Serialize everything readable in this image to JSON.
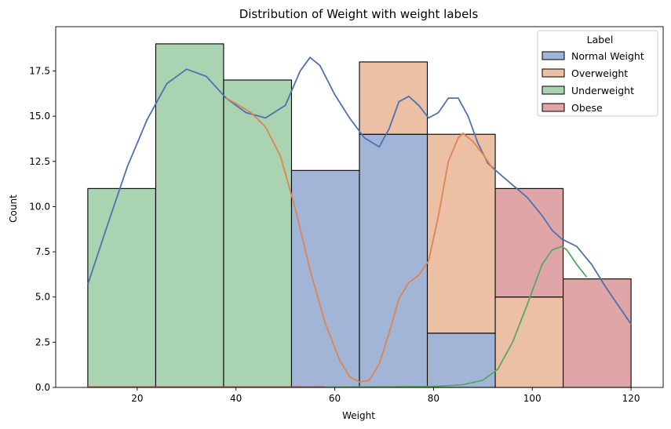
{
  "chart_data": {
    "type": "bar",
    "title": "Distribution of Weight with weight labels",
    "xlabel": "Weight",
    "ylabel": "Count",
    "xlim": [
      3.5,
      126.5
    ],
    "ylim": [
      0,
      19.95
    ],
    "xticks": [
      20,
      40,
      60,
      80,
      100,
      120
    ],
    "yticks": [
      0.0,
      2.5,
      5.0,
      7.5,
      10.0,
      12.5,
      15.0,
      17.5
    ],
    "ytick_labels": [
      "0.0",
      "2.5",
      "5.0",
      "7.5",
      "10.0",
      "12.5",
      "15.0",
      "17.5"
    ],
    "bin_edges": [
      10,
      23.75,
      37.5,
      51.25,
      65,
      78.75,
      92.5,
      106.25,
      120
    ],
    "stacked": true,
    "series": [
      {
        "name": "Normal Weight",
        "color": "#4c72b0",
        "fill": "#a2b5d6",
        "values": [
          0,
          0,
          0,
          12,
          14,
          3,
          0,
          0
        ]
      },
      {
        "name": "Overweight",
        "color": "#dd8452",
        "fill": "#ebc0a5",
        "values": [
          0,
          0,
          0,
          0,
          4,
          11,
          5,
          0
        ]
      },
      {
        "name": "Underweight",
        "color": "#55a868",
        "fill": "#aad3b2",
        "values": [
          11,
          19,
          17,
          0,
          0,
          0,
          0,
          0
        ]
      },
      {
        "name": "Obese",
        "color": "#c44e52",
        "fill": "#e0a5a7",
        "values": [
          0,
          0,
          0,
          0,
          0,
          0,
          6,
          6
        ]
      }
    ],
    "kde": [
      {
        "series": "Normal Weight",
        "color": "#4c72b0",
        "points": [
          [
            10,
            5.7
          ],
          [
            14,
            9.0
          ],
          [
            18,
            12.2
          ],
          [
            22,
            14.8
          ],
          [
            26,
            16.8
          ],
          [
            30,
            17.6
          ],
          [
            34,
            17.2
          ],
          [
            38,
            16.0
          ],
          [
            42,
            15.2
          ],
          [
            46,
            14.9
          ],
          [
            50,
            15.6
          ],
          [
            53,
            17.5
          ],
          [
            55,
            18.25
          ],
          [
            57,
            17.8
          ],
          [
            60,
            16.2
          ],
          [
            63,
            14.9
          ],
          [
            66,
            13.8
          ],
          [
            69,
            13.3
          ],
          [
            71,
            14.3
          ],
          [
            73,
            15.8
          ],
          [
            75,
            16.1
          ],
          [
            77,
            15.6
          ],
          [
            79,
            14.9
          ],
          [
            81,
            15.2
          ],
          [
            83,
            16.0
          ],
          [
            85,
            16.0
          ],
          [
            87,
            15.0
          ],
          [
            89,
            13.5
          ],
          [
            91,
            12.4
          ],
          [
            93,
            11.9
          ],
          [
            96,
            11.2
          ],
          [
            99,
            10.5
          ],
          [
            102,
            9.5
          ],
          [
            104,
            8.7
          ],
          [
            106,
            8.2
          ],
          [
            109,
            7.8
          ],
          [
            112,
            6.8
          ],
          [
            115,
            5.5
          ],
          [
            118,
            4.3
          ],
          [
            120,
            3.5
          ]
        ]
      },
      {
        "series": "Overweight",
        "color": "#dd8452",
        "points": [
          [
            38,
            16.0
          ],
          [
            40,
            15.7
          ],
          [
            43,
            15.2
          ],
          [
            46,
            14.4
          ],
          [
            49,
            12.8
          ],
          [
            52,
            9.9
          ],
          [
            55,
            6.5
          ],
          [
            58,
            3.6
          ],
          [
            61,
            1.5
          ],
          [
            63,
            0.6
          ],
          [
            65,
            0.3
          ],
          [
            67,
            0.4
          ],
          [
            69,
            1.3
          ],
          [
            71,
            3.0
          ],
          [
            73,
            4.9
          ],
          [
            75,
            5.8
          ],
          [
            77,
            6.2
          ],
          [
            79,
            7.0
          ],
          [
            81,
            9.5
          ],
          [
            83,
            12.5
          ],
          [
            85,
            13.8
          ],
          [
            86,
            14.05
          ],
          [
            88,
            13.6
          ],
          [
            90,
            12.9
          ],
          [
            92,
            12.1
          ]
        ]
      },
      {
        "series": "Underweight",
        "color": "#55a868",
        "points": [
          [
            10,
            0.02
          ],
          [
            60,
            0.02
          ],
          [
            80,
            0.05
          ],
          [
            86,
            0.15
          ],
          [
            90,
            0.4
          ],
          [
            93,
            1.0
          ],
          [
            96,
            2.5
          ],
          [
            99,
            4.6
          ],
          [
            102,
            6.8
          ],
          [
            104,
            7.6
          ],
          [
            106,
            7.8
          ],
          [
            107,
            7.6
          ],
          [
            109,
            6.8
          ],
          [
            111,
            6.1
          ]
        ]
      },
      {
        "series": "Obese",
        "color": "#c44e52",
        "points": [
          [
            10,
            0.02
          ],
          [
            58,
            0.02
          ]
        ]
      }
    ],
    "legend": {
      "title": "Label",
      "placement": "top-right",
      "entries": [
        "Normal Weight",
        "Overweight",
        "Underweight",
        "Obese"
      ]
    },
    "grid": false
  }
}
